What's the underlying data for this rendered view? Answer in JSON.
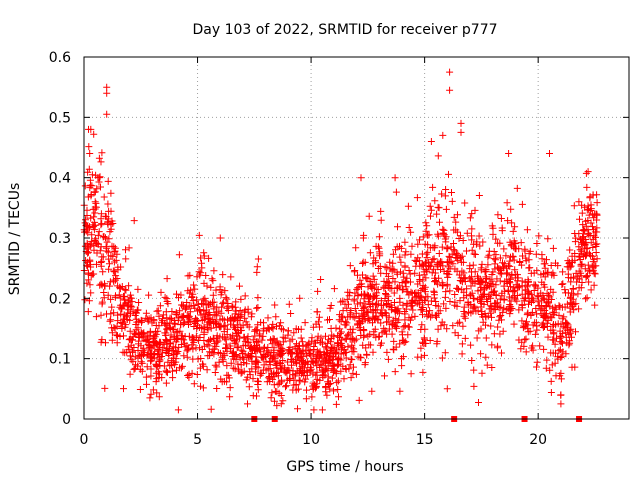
{
  "chart_data": {
    "type": "scatter",
    "title": "Day 103 of 2022, SRMTID for receiver p777",
    "xlabel": "GPS time / hours",
    "ylabel": "SRMTID / TECUs",
    "xlim": [
      0,
      24
    ],
    "ylim": [
      0,
      0.6
    ],
    "xticks": [
      0,
      5,
      10,
      15,
      20
    ],
    "xtick_labels": [
      "0",
      "5",
      "10",
      "15",
      "20"
    ],
    "yticks": [
      0,
      0.1,
      0.2,
      0.3,
      0.4,
      0.5,
      0.6
    ],
    "ytick_labels": [
      "0",
      "0.1",
      "0.2",
      "0.3",
      "0.4",
      "0.5",
      "0.6"
    ],
    "grid": true,
    "marker": "+",
    "color": "#ff0000",
    "n_points": 2700,
    "trend": [
      {
        "x": 0.0,
        "mean": 0.26,
        "spread": 0.06
      },
      {
        "x": 0.4,
        "mean": 0.32,
        "spread": 0.07
      },
      {
        "x": 1.0,
        "mean": 0.26,
        "spread": 0.07
      },
      {
        "x": 1.5,
        "mean": 0.2,
        "spread": 0.05
      },
      {
        "x": 2.2,
        "mean": 0.15,
        "spread": 0.04
      },
      {
        "x": 3.0,
        "mean": 0.11,
        "spread": 0.03
      },
      {
        "x": 4.0,
        "mean": 0.13,
        "spread": 0.04
      },
      {
        "x": 5.0,
        "mean": 0.17,
        "spread": 0.05
      },
      {
        "x": 6.0,
        "mean": 0.15,
        "spread": 0.045
      },
      {
        "x": 7.0,
        "mean": 0.13,
        "spread": 0.04
      },
      {
        "x": 8.0,
        "mean": 0.1,
        "spread": 0.035
      },
      {
        "x": 9.0,
        "mean": 0.1,
        "spread": 0.035
      },
      {
        "x": 10.0,
        "mean": 0.09,
        "spread": 0.03
      },
      {
        "x": 11.0,
        "mean": 0.1,
        "spread": 0.035
      },
      {
        "x": 12.0,
        "mean": 0.17,
        "spread": 0.05
      },
      {
        "x": 13.0,
        "mean": 0.2,
        "spread": 0.05
      },
      {
        "x": 14.0,
        "mean": 0.19,
        "spread": 0.05
      },
      {
        "x": 15.0,
        "mean": 0.22,
        "spread": 0.06
      },
      {
        "x": 16.0,
        "mean": 0.26,
        "spread": 0.07
      },
      {
        "x": 17.0,
        "mean": 0.22,
        "spread": 0.06
      },
      {
        "x": 18.0,
        "mean": 0.2,
        "spread": 0.05
      },
      {
        "x": 19.0,
        "mean": 0.24,
        "spread": 0.05
      },
      {
        "x": 20.0,
        "mean": 0.18,
        "spread": 0.05
      },
      {
        "x": 21.0,
        "mean": 0.15,
        "spread": 0.05
      },
      {
        "x": 22.0,
        "mean": 0.29,
        "spread": 0.05
      },
      {
        "x": 22.6,
        "mean": 0.28,
        "spread": 0.05
      }
    ],
    "notable_points": [
      {
        "x": 1.0,
        "y": 0.55
      },
      {
        "x": 1.0,
        "y": 0.54
      },
      {
        "x": 1.0,
        "y": 0.505
      },
      {
        "x": 0.2,
        "y": 0.48
      },
      {
        "x": 0.3,
        "y": 0.48
      },
      {
        "x": 0.25,
        "y": 0.44
      },
      {
        "x": 16.1,
        "y": 0.575
      },
      {
        "x": 16.1,
        "y": 0.545
      },
      {
        "x": 16.6,
        "y": 0.49
      },
      {
        "x": 16.6,
        "y": 0.475
      },
      {
        "x": 15.8,
        "y": 0.47
      },
      {
        "x": 15.3,
        "y": 0.46
      },
      {
        "x": 18.7,
        "y": 0.44
      },
      {
        "x": 20.5,
        "y": 0.44
      },
      {
        "x": 22.2,
        "y": 0.41
      },
      {
        "x": 12.2,
        "y": 0.4
      },
      {
        "x": 13.7,
        "y": 0.4
      },
      {
        "x": 9.5,
        "y": 0.2
      },
      {
        "x": 6.0,
        "y": 0.3
      },
      {
        "x": 21.0,
        "y": 0.04
      },
      {
        "x": 21.0,
        "y": 0.025
      },
      {
        "x": 16.0,
        "y": 0.05
      },
      {
        "x": 7.2,
        "y": 0.025
      },
      {
        "x": 2.9,
        "y": 0.035
      }
    ],
    "gap_markers_x": [
      7.5,
      8.4,
      16.3,
      19.4,
      21.8
    ]
  }
}
